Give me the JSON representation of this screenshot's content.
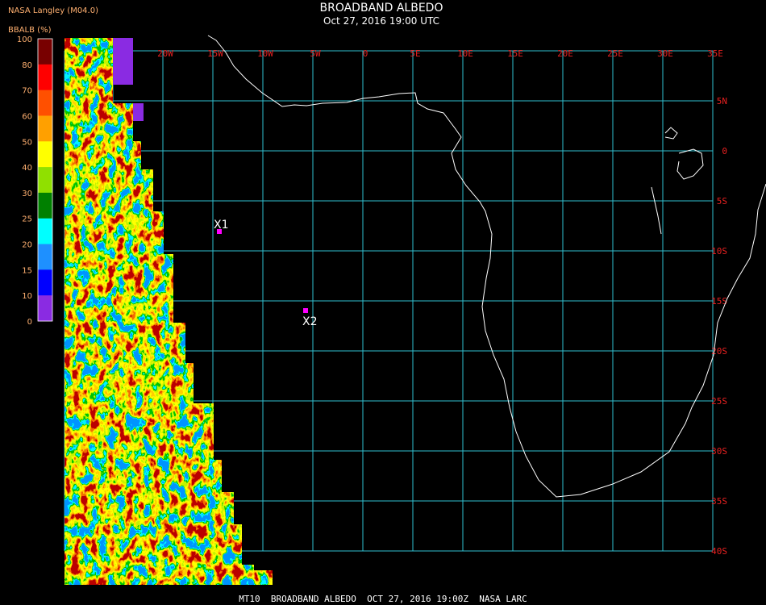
{
  "header": {
    "source": "NASA Langley (M04.0)",
    "title": "BROADBAND ALBEDO",
    "subtitle": "Oct 27, 2016 19:00 UTC"
  },
  "legend": {
    "title": "BBALB (%)",
    "ticks": [
      100,
      80,
      70,
      60,
      50,
      40,
      30,
      25,
      20,
      15,
      10,
      0
    ],
    "colors": [
      "#780000",
      "#ff0000",
      "#ff5000",
      "#ffa000",
      "#ffff00",
      "#90e000",
      "#008000",
      "#00ffff",
      "#1e90ff",
      "#0000ff",
      "#8a2be2"
    ]
  },
  "grid": {
    "lon_labels": [
      "25W",
      "20W",
      "15W",
      "10W",
      "5W",
      "0",
      "5E",
      "10E",
      "15E",
      "20E",
      "25E",
      "30E",
      "35E"
    ],
    "lat_labels": [
      "5N",
      "0",
      "5S",
      "10S",
      "15S",
      "20S",
      "25S",
      "30S",
      "35S",
      "40S"
    ]
  },
  "markers": [
    {
      "label": "X1"
    },
    {
      "label": "X2"
    }
  ],
  "footer": "MT10  BROADBAND ALBEDO  OCT 27, 2016 19:00Z  NASA LARC"
}
